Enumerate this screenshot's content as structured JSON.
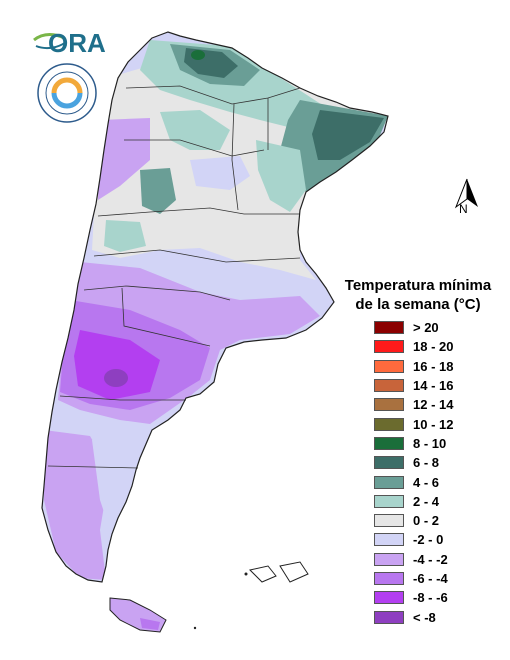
{
  "logo": {
    "text": "ORA"
  },
  "north_arrow": {
    "label": "N"
  },
  "legend": {
    "title_line1": "Temperatura mínima",
    "title_line2": "de la semana (°C)",
    "items": [
      {
        "label": "> 20",
        "color": "#8b0000"
      },
      {
        "label": "18 - 20",
        "color": "#ff1a1a"
      },
      {
        "label": "16 - 18",
        "color": "#ff6a3d"
      },
      {
        "label": "14 - 16",
        "color": "#c8643a"
      },
      {
        "label": "12 - 14",
        "color": "#a9713f"
      },
      {
        "label": "10 - 12",
        "color": "#6b6b2e"
      },
      {
        "label": "8 - 10",
        "color": "#1a6e3a"
      },
      {
        "label": "6 - 8",
        "color": "#3d6e68"
      },
      {
        "label": "4 - 6",
        "color": "#6a9e96"
      },
      {
        "label": "2 - 4",
        "color": "#a8d4cc"
      },
      {
        "label": "0 - 2",
        "color": "#e6e6e6"
      },
      {
        "label": "-2 - 0",
        "color": "#d2d4f6"
      },
      {
        "label": "-4 - -2",
        "color": "#c9a3f2"
      },
      {
        "label": "-6 - -4",
        "color": "#b877ef"
      },
      {
        "label": "-8 - -6",
        "color": "#b33ff0"
      },
      {
        "label": "< -8",
        "color": "#8e3fc0"
      }
    ]
  }
}
